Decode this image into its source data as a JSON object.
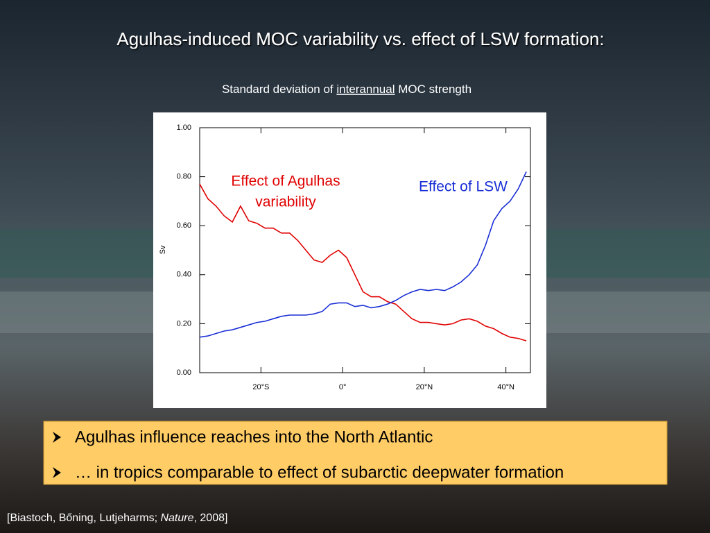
{
  "slide": {
    "title": "Agulhas-induced MOC variability vs. effect of LSW formation:",
    "subtitle": [
      "Standard deviation of",
      "interannual",
      "MOC strength"
    ],
    "bullets": [
      "Agulhas influence reaches into the North Atlantic",
      "… in tropics comparable to effect of subarctic deepwater formation"
    ],
    "citation": [
      "[Biastoch, Bőning, Lutjeharms;",
      "Nature",
      ", 2008]"
    ]
  },
  "chart_data": {
    "type": "line",
    "y_label": "Sv",
    "x": [
      -35,
      -33,
      -31,
      -29,
      -27,
      -25,
      -23,
      -21,
      -19,
      -17,
      -15,
      -13,
      -11,
      -9,
      -7,
      -5,
      -3,
      -1,
      1,
      3,
      5,
      7,
      9,
      11,
      13,
      15,
      17,
      19,
      21,
      23,
      25,
      27,
      29,
      31,
      33,
      35,
      37,
      39,
      41,
      43,
      45
    ],
    "xlim": [
      -35,
      46
    ],
    "xticks": [
      {
        "value": -20,
        "label": "20°S"
      },
      {
        "value": 0,
        "label": "0°"
      },
      {
        "value": 20,
        "label": "20°N"
      },
      {
        "value": 40,
        "label": "40°N"
      }
    ],
    "ylim": [
      0,
      1
    ],
    "yticks": [
      {
        "value": 0,
        "label": "0.00"
      },
      {
        "value": 0.2,
        "label": "0.20"
      },
      {
        "value": 0.4,
        "label": "0.40"
      },
      {
        "value": 0.6,
        "label": "0.60"
      },
      {
        "value": 0.8,
        "label": "0.80"
      },
      {
        "value": 1,
        "label": "1.00"
      }
    ],
    "grid": false,
    "series": [
      {
        "name": "Effect of Agulhas variability",
        "color": "#e00000",
        "values": [
          0.77,
          0.71,
          0.68,
          0.64,
          0.615,
          0.68,
          0.62,
          0.61,
          0.59,
          0.59,
          0.57,
          0.57,
          0.54,
          0.5,
          0.46,
          0.45,
          0.48,
          0.5,
          0.47,
          0.4,
          0.33,
          0.31,
          0.31,
          0.29,
          0.28,
          0.25,
          0.22,
          0.205,
          0.205,
          0.2,
          0.195,
          0.2,
          0.215,
          0.22,
          0.21,
          0.19,
          0.18,
          0.16,
          0.145,
          0.14,
          0.13
        ]
      },
      {
        "name": "Effect of LSW",
        "color": "#1a2fd6",
        "values": [
          0.145,
          0.15,
          0.16,
          0.17,
          0.175,
          0.185,
          0.195,
          0.205,
          0.21,
          0.22,
          0.23,
          0.235,
          0.235,
          0.235,
          0.24,
          0.25,
          0.28,
          0.285,
          0.285,
          0.27,
          0.275,
          0.265,
          0.27,
          0.28,
          0.295,
          0.315,
          0.33,
          0.34,
          0.335,
          0.34,
          0.335,
          0.35,
          0.37,
          0.4,
          0.44,
          0.52,
          0.62,
          0.67,
          0.7,
          0.75,
          0.82
        ]
      }
    ],
    "annotations": [
      {
        "lines": [
          "Effect of Agulhas",
          "variability"
        ],
        "color": "#e00000"
      },
      {
        "lines": [
          "Effect of LSW"
        ],
        "color": "#1a2fd6"
      }
    ]
  }
}
